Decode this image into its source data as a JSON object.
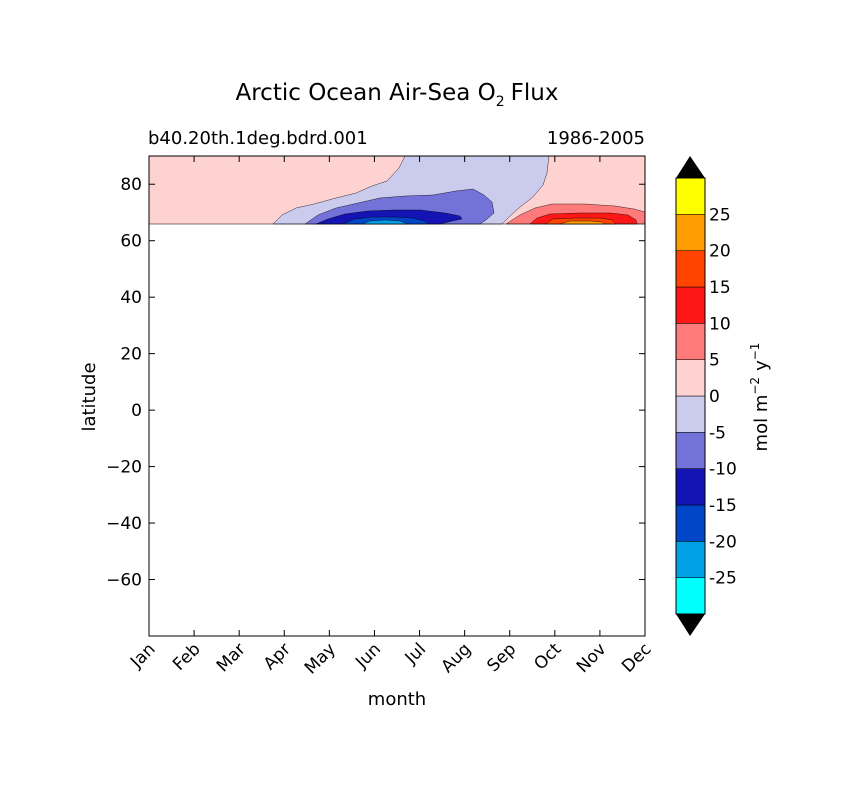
{
  "chart_data": {
    "type": "heatmap",
    "title_main": "Arctic Ocean Air-Sea O",
    "title_sub": "2",
    "title_end": "Flux",
    "subtitle_left": "b40.20th.1deg.bdrd.001",
    "subtitle_right": "1986-2005",
    "xlabel": "month",
    "ylabel": "latitude",
    "x_categories": [
      "Jan",
      "Feb",
      "Mar",
      "Apr",
      "May",
      "Jun",
      "Jul",
      "Aug",
      "Sep",
      "Oct",
      "Nov",
      "Dec"
    ],
    "ylim": [
      -80,
      90
    ],
    "y_ticks": [
      80,
      60,
      40,
      20,
      0,
      -20,
      -40,
      -60
    ],
    "y_tick_labels": [
      "80",
      "60",
      "40",
      "20",
      "0",
      "−20",
      "−40",
      "−60"
    ],
    "data_lat_range": [
      66,
      90
    ],
    "colorbar": {
      "label": "mol m",
      "label_exp1": "−2",
      "label_mid": "y",
      "label_exp2": "−1",
      "levels": [
        -30,
        -25,
        -20,
        -15,
        -10,
        -5,
        0,
        5,
        10,
        15,
        20,
        25,
        30
      ],
      "tick_labels": [
        "-25",
        "-20",
        "-15",
        "-10",
        "-5",
        "0",
        "5",
        "10",
        "15",
        "20",
        "25"
      ],
      "colors": [
        "#00ffff",
        "#00a0e6",
        "#0046c8",
        "#1414b4",
        "#7272d8",
        "#cbcbee",
        "#ffd2d2",
        "#ff7a7a",
        "#ff1616",
        "#ff4400",
        "#ff9c00",
        "#ffff00"
      ],
      "extend": "both",
      "extend_color": "#000000"
    },
    "regions": [
      {
        "name": "fill 0 to 5",
        "level_range": [
          0,
          5
        ]
      },
      {
        "name": "fill -5 to 0",
        "level_range": [
          -5,
          0
        ]
      },
      {
        "name": "fill -10 to -5",
        "level_range": [
          -10,
          -5
        ]
      },
      {
        "name": "fill -15 to -10",
        "level_range": [
          -15,
          -10
        ]
      },
      {
        "name": "fill -20 to -15",
        "level_range": [
          -20,
          -15
        ]
      },
      {
        "name": "fill -25 to -20",
        "level_range": [
          -25,
          -20
        ]
      },
      {
        "name": "fill 5 to 10",
        "level_range": [
          5,
          10
        ]
      },
      {
        "name": "fill 10 to 15",
        "level_range": [
          10,
          15
        ]
      },
      {
        "name": "fill 15 to 20",
        "level_range": [
          15,
          20
        ]
      },
      {
        "name": "fill 20 to 25",
        "level_range": [
          20,
          25
        ]
      }
    ]
  }
}
